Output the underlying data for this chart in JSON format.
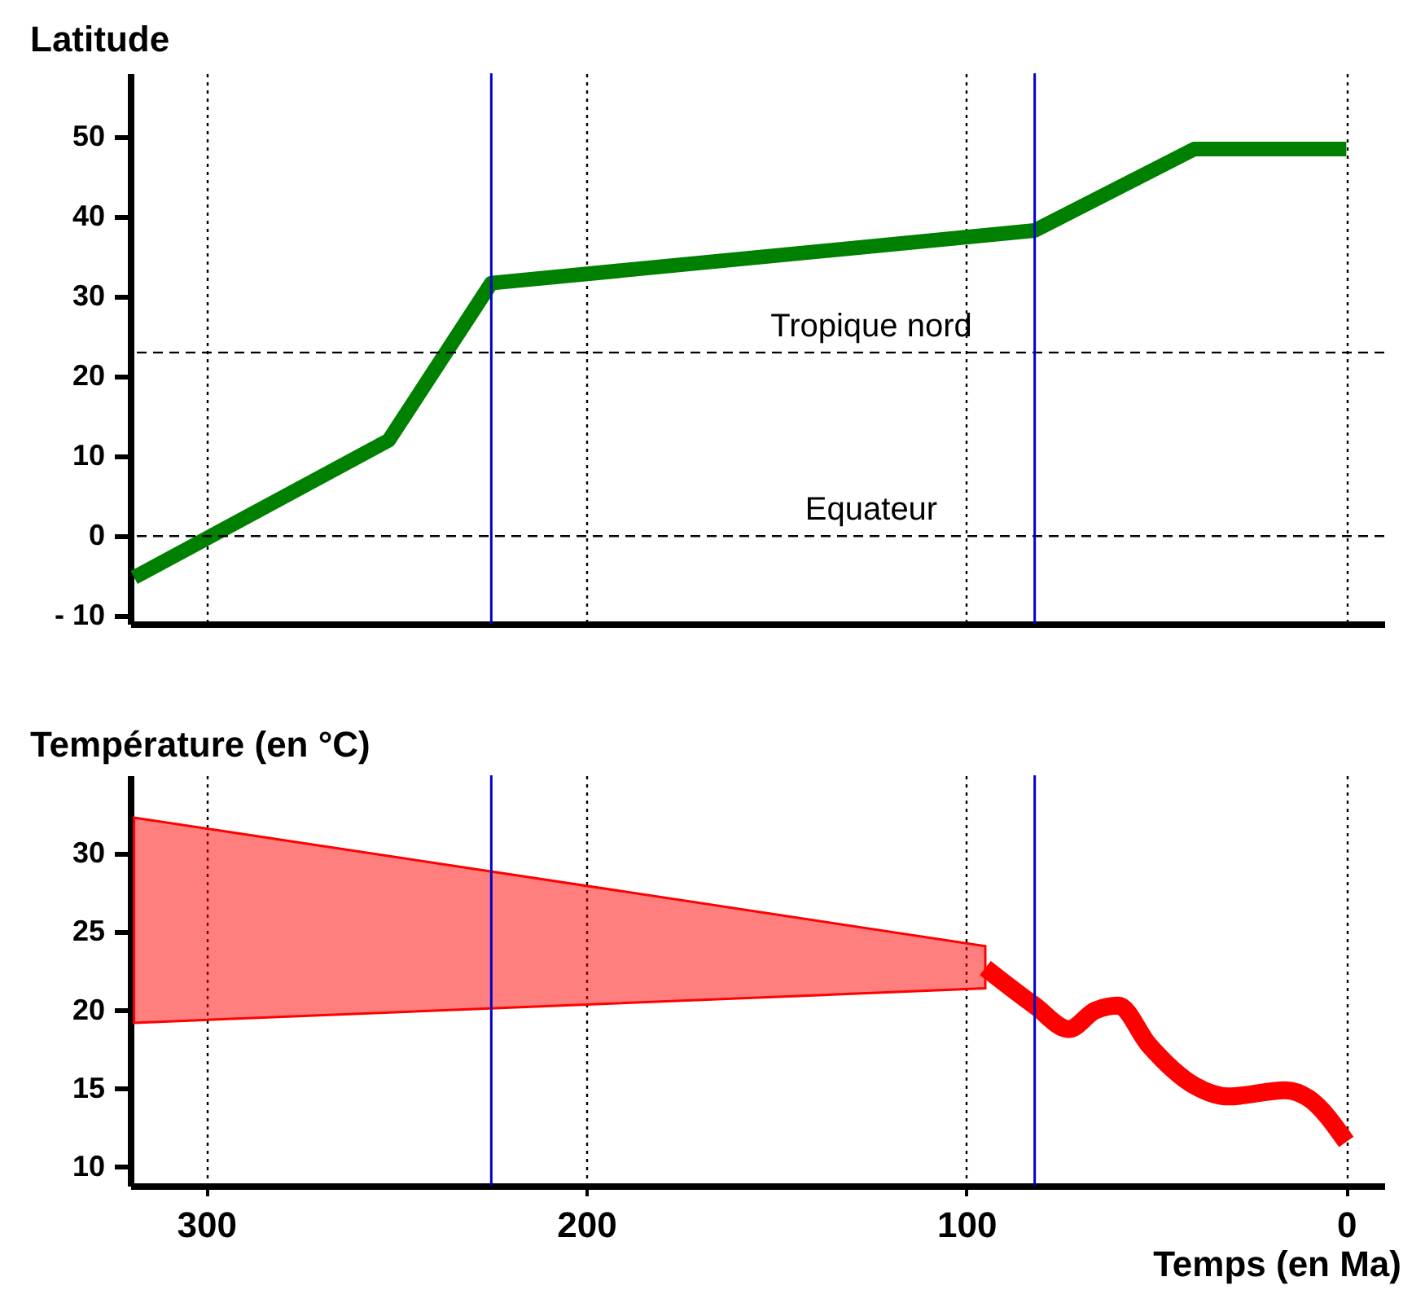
{
  "chart_data": [
    {
      "type": "line",
      "ylabel": "Latitude",
      "xlim": [
        320,
        -10
      ],
      "xticks": [
        300,
        200,
        100,
        0
      ],
      "ylim": [
        -11,
        58
      ],
      "yticks": [
        {
          "value": -10,
          "label": "- 10"
        },
        0,
        10,
        20,
        30,
        40,
        50
      ],
      "grid": "x",
      "tick_labels": "y",
      "series": [
        {
          "color": "#008000",
          "x": [
            319,
            252,
            225,
            82,
            40,
            0
          ],
          "values": [
            -5.2,
            12,
            31.7,
            38.3,
            48.5,
            48.5
          ]
        }
      ],
      "ref_lines": [
        {
          "axis": "y",
          "value": 23,
          "label": "Tropique nord",
          "color": "#000000",
          "line_style": "dashed"
        },
        {
          "axis": "y",
          "value": 0,
          "label": "Equateur",
          "color": "#000000",
          "line_style": "dashed"
        },
        {
          "axis": "x",
          "value": 225,
          "color": "#0000cc",
          "line_style": "solid"
        },
        {
          "axis": "x",
          "value": 82,
          "color": "#0000cc",
          "line_style": "solid"
        }
      ]
    },
    {
      "type": "line",
      "ylabel": "Température (en °C)",
      "xlabel": "Temps (en Ma)",
      "xlim": [
        320,
        -10
      ],
      "xticks": [
        300,
        200,
        100,
        0
      ],
      "ylim": [
        8.8,
        35
      ],
      "yticks": [
        10,
        15,
        20,
        25,
        30
      ],
      "grid": "x",
      "series": [
        {
          "type": "area",
          "color": "#ff0000",
          "x": [
            319,
            95
          ],
          "values": [
            null,
            null
          ],
          "lower": [
            19.2,
            21.4
          ],
          "upper": [
            32.3,
            24.1
          ]
        },
        {
          "color": "#ff0000",
          "x": [
            95,
            82,
            73,
            66,
            60,
            52,
            40,
            31,
            16,
            10,
            0
          ],
          "values": [
            22.7,
            20.3,
            18.8,
            20,
            20.3,
            17.8,
            15.2,
            14.5,
            14.9,
            14.4,
            11.6
          ]
        }
      ],
      "ref_lines": [
        {
          "axis": "x",
          "value": 225,
          "color": "#0000cc",
          "line_style": "solid"
        },
        {
          "axis": "x",
          "value": 82,
          "color": "#0000cc",
          "line_style": "solid"
        }
      ]
    }
  ]
}
